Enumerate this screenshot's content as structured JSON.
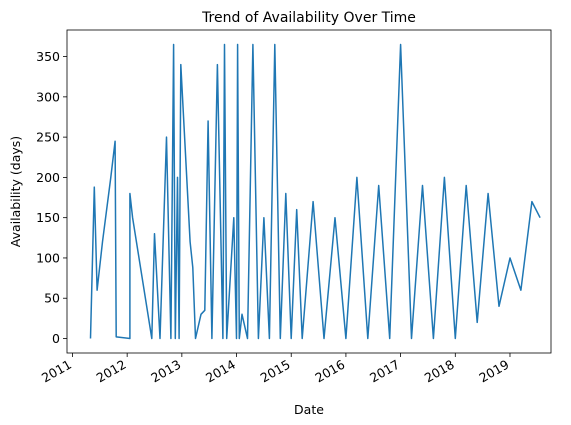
{
  "chart_data": {
    "type": "line",
    "title": "Trend of Availability Over Time",
    "xlabel": "Date",
    "ylabel": "Availability (days)",
    "x_tick_labels": [
      "2011",
      "2012",
      "2013",
      "2014",
      "2015",
      "2016",
      "2017",
      "2018",
      "2019"
    ],
    "x_tick_values": [
      2011,
      2012,
      2013,
      2014,
      2015,
      2016,
      2017,
      2018,
      2019
    ],
    "y_tick_labels": [
      "0",
      "50",
      "100",
      "150",
      "200",
      "250",
      "300",
      "350"
    ],
    "y_tick_values": [
      0,
      50,
      100,
      150,
      200,
      250,
      300,
      350
    ],
    "xlim": [
      2010.9,
      2019.75
    ],
    "ylim": [
      -18,
      383
    ],
    "grid": false,
    "line_color": "#1f77b4",
    "series": [
      {
        "x": [
          2011.33,
          2011.4,
          2011.45,
          2011.55,
          2011.7,
          2011.78,
          2011.8,
          2012.05,
          2012.05,
          2012.1,
          2012.45,
          2012.5,
          2012.6,
          2012.72,
          2012.8,
          2012.85,
          2012.88,
          2012.92,
          2012.95,
          2012.98,
          2013.15,
          2013.2,
          2013.25,
          2013.35,
          2013.42,
          2013.48,
          2013.55,
          2013.65,
          2013.75,
          2013.78,
          2013.82,
          2013.95,
          2014.0,
          2014.02,
          2014.05,
          2014.1,
          2014.2,
          2014.3,
          2014.4,
          2014.5,
          2014.6,
          2014.7,
          2014.8,
          2014.9,
          2015.0,
          2015.1,
          2015.2,
          2015.4,
          2015.6,
          2015.8,
          2016.0,
          2016.2,
          2016.4,
          2016.6,
          2016.8,
          2017.0,
          2017.2,
          2017.4,
          2017.6,
          2017.8,
          2018.0,
          2018.2,
          2018.4,
          2018.6,
          2018.8,
          2019.0,
          2019.2,
          2019.4,
          2019.55
        ],
        "values": [
          0,
          188,
          60,
          120,
          200,
          245,
          2,
          0,
          180,
          150,
          0,
          130,
          0,
          250,
          0,
          365,
          0,
          200,
          0,
          340,
          120,
          88,
          0,
          30,
          35,
          270,
          0,
          340,
          0,
          365,
          0,
          150,
          0,
          365,
          0,
          30,
          0,
          365,
          0,
          150,
          0,
          365,
          0,
          180,
          0,
          160,
          0,
          170,
          0,
          150,
          0,
          200,
          0,
          190,
          0,
          365,
          0,
          190,
          0,
          200,
          0,
          190,
          20,
          180,
          40,
          100,
          60,
          170,
          150
        ]
      }
    ]
  }
}
